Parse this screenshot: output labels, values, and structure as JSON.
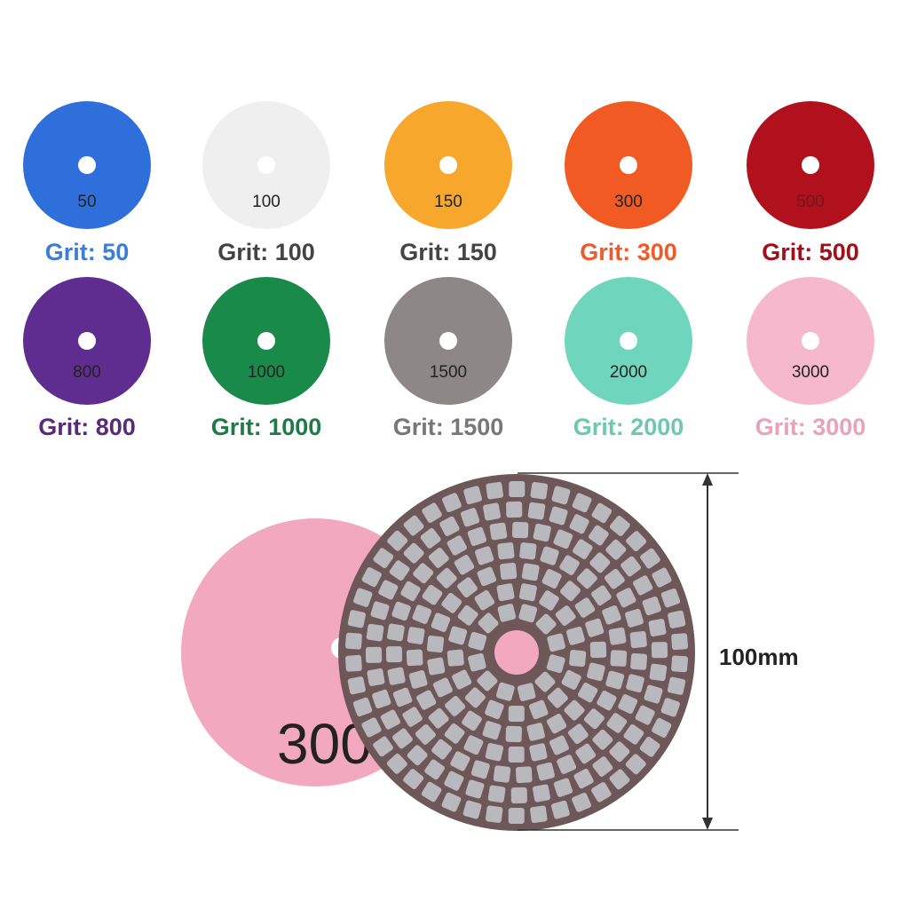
{
  "pads": [
    {
      "disc_text": "50",
      "label": "Grit: 50",
      "color": "#2f6fdc",
      "label_color": "#3b7ddb"
    },
    {
      "disc_text": "100",
      "label": "Grit: 100",
      "color": "#efefef",
      "label_color": "#444444"
    },
    {
      "disc_text": "150",
      "label": "Grit: 150",
      "color": "#f7a72b",
      "label_color": "#444444"
    },
    {
      "disc_text": "300",
      "label": "Grit: 300",
      "color": "#f15a22",
      "label_color": "#f05a28"
    },
    {
      "disc_text": "500",
      "label": "Grit: 500",
      "color": "#b0111c",
      "label_color": "#a0101a"
    },
    {
      "disc_text": "800",
      "label": "Grit: 800",
      "color": "#5e2d8f",
      "label_color": "#5a2a7a"
    },
    {
      "disc_text": "1000",
      "label": "Grit: 1000",
      "color": "#1a8a4a",
      "label_color": "#1f7a45"
    },
    {
      "disc_text": "1500",
      "label": "Grit: 1500",
      "color": "#8d8787",
      "label_color": "#777777"
    },
    {
      "disc_text": "2000",
      "label": "Grit: 2000",
      "color": "#6fd6bd",
      "label_color": "#6cc9ae"
    },
    {
      "disc_text": "3000",
      "label": "Grit: 3000",
      "color": "#f5b8cc",
      "label_color": "#e8a3b8"
    }
  ],
  "product": {
    "disc_text": "300",
    "dimension": "100mm"
  }
}
